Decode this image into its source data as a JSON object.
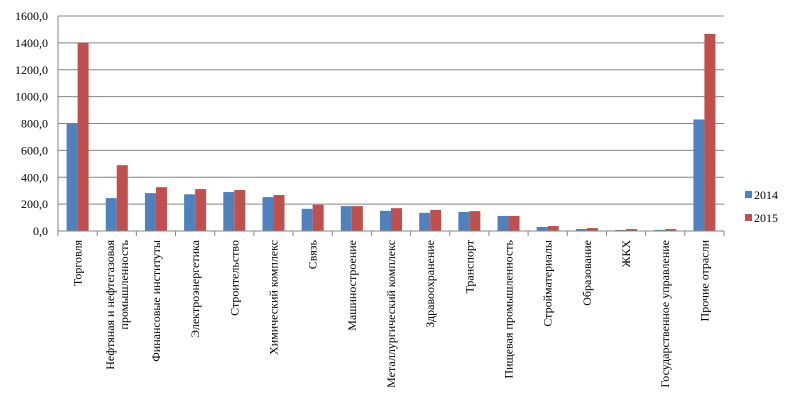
{
  "chart_data": {
    "type": "bar",
    "title": "",
    "xlabel": "",
    "ylabel": "",
    "ylim": [
      0,
      1600
    ],
    "yticks": [
      "0,0",
      "200,0",
      "400,0",
      "600,0",
      "800,0",
      "1000,0",
      "1200,0",
      "1400,0",
      "1600,0"
    ],
    "grid": true,
    "legend_position": "right",
    "categories": [
      [
        "Торговля"
      ],
      [
        "Нефтяная и нефтегазовая",
        "промышленность"
      ],
      [
        "Финансовые институты"
      ],
      [
        "Электроэнергетика"
      ],
      [
        "Строительство"
      ],
      [
        "Химический комплекс"
      ],
      [
        "Связь"
      ],
      [
        "Машиностроение"
      ],
      [
        "Металлургический комплекс"
      ],
      [
        "Здравоохранение"
      ],
      [
        "Транспорт"
      ],
      [
        "Пищевая промышленность"
      ],
      [
        "Стройматериалы"
      ],
      [
        "Образование"
      ],
      [
        "ЖКХ"
      ],
      [
        "Государственное управление"
      ],
      [
        "Прочие отрасли"
      ]
    ],
    "series": [
      {
        "name": "2014",
        "color": "#4F81BD",
        "values": [
          800,
          245,
          282,
          273,
          290,
          252,
          165,
          185,
          150,
          135,
          142,
          112,
          30,
          15,
          8,
          8,
          830
        ]
      },
      {
        "name": "2015",
        "color": "#C0504D",
        "values": [
          1400,
          490,
          326,
          312,
          305,
          268,
          195,
          185,
          170,
          157,
          148,
          112,
          37,
          22,
          15,
          15,
          1467
        ]
      }
    ]
  }
}
